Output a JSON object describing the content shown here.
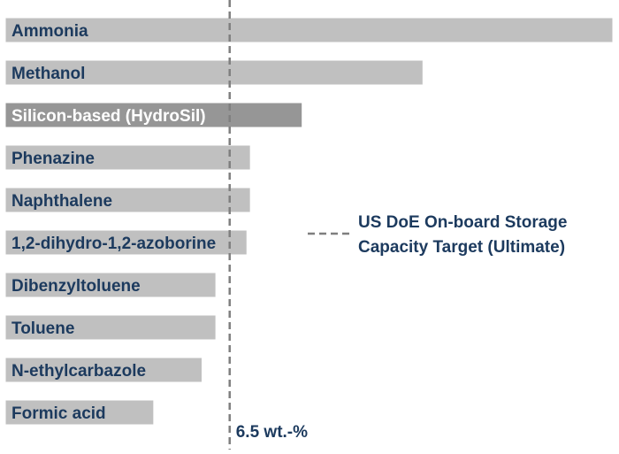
{
  "chart_data": {
    "type": "bar",
    "orientation": "horizontal",
    "categories": [
      "Ammonia",
      "Methanol",
      "Silicon-based (HydroSil)",
      "Phenazine",
      "Naphthalene",
      "1,2-dihydro-1,2-azoborine",
      "Dibenzyltoluene",
      "Toluene",
      "N-ethylcarbazole",
      "Formic acid"
    ],
    "values": [
      17.6,
      12.1,
      8.6,
      7.1,
      7.1,
      7.0,
      6.1,
      6.1,
      5.7,
      4.3
    ],
    "highlight_index": 2,
    "xlim": [
      0,
      17.6
    ],
    "reference_line": {
      "value": 6.5,
      "label": "6.5 wt.-%",
      "legend_text": [
        "US DoE On-board Storage",
        "Capacity Target (Ultimate)"
      ]
    },
    "colors": {
      "bar": "#c0c0c0",
      "bar_highlight": "#969696",
      "bar_edge": "#ffffff",
      "label_dark": "#1c3a5e",
      "label_highlight": "#ffffff",
      "reference_line": "#7f7f7f",
      "annotation": "#1c3a5e"
    }
  }
}
